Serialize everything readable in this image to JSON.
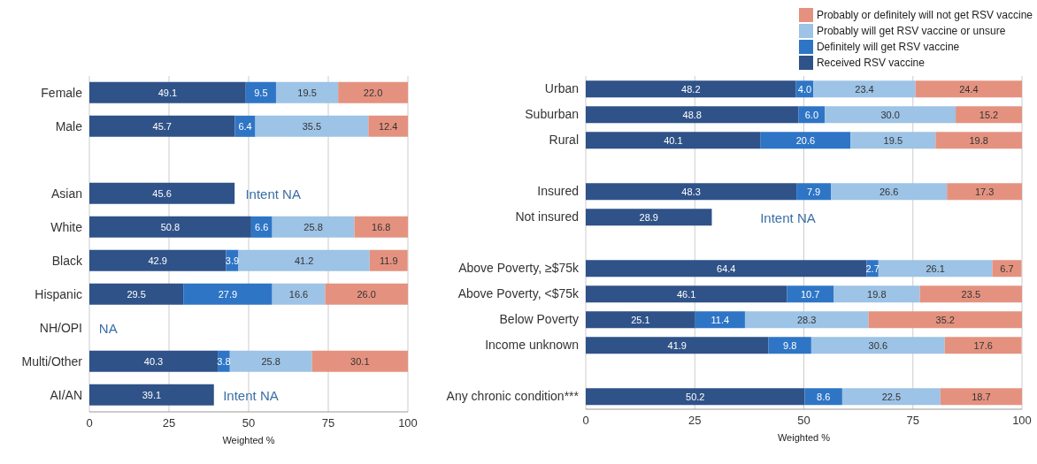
{
  "chart_data": [
    {
      "type": "bar",
      "orientation": "horizontal",
      "stacked": true,
      "xlabel": "Weighted %",
      "categories": [
        "Female",
        "Male",
        null,
        "Asian",
        "White",
        "Black",
        "Hispanic",
        "NH/OPI",
        "Multi/Other",
        "AI/AN"
      ],
      "series": [
        {
          "color": "#2f5288",
          "values": [
            49.1,
            45.7,
            null,
            45.6,
            50.8,
            42.9,
            29.5,
            null,
            40.3,
            39.1
          ],
          "value_labels": [
            "49.1",
            "45.7",
            null,
            "45.6",
            "50.8",
            "42.9",
            "29.5",
            null,
            "40.3",
            "39.1"
          ]
        },
        {
          "color": "#2e75c6",
          "values": [
            9.5,
            6.4,
            null,
            null,
            6.6,
            3.9,
            27.9,
            null,
            3.8,
            null
          ],
          "value_labels": [
            "9.5",
            "6.4",
            null,
            null,
            "6.6",
            "3.9",
            "27.9",
            null,
            "3.8",
            null
          ]
        },
        {
          "color": "#9dc3e6",
          "values": [
            19.5,
            35.5,
            null,
            null,
            25.8,
            41.2,
            16.6,
            null,
            25.8,
            null
          ],
          "value_labels": [
            "19.5",
            "35.5",
            null,
            null,
            "25.8",
            "41.2",
            "16.6",
            null,
            "25.8",
            null
          ]
        },
        {
          "color": "#e4927f",
          "values": [
            22.0,
            12.4,
            null,
            null,
            16.8,
            11.9,
            26.0,
            null,
            30.1,
            null
          ],
          "value_labels": [
            "22.0",
            "12.4",
            null,
            null,
            "16.8",
            "11.9",
            "26.0",
            null,
            "30.1",
            null
          ]
        }
      ],
      "xlim": [
        0,
        100
      ],
      "xticks": [
        0,
        25,
        50,
        75,
        100
      ],
      "grid": "x",
      "legend": false,
      "annotations": [
        "Intent NA",
        "NA",
        "Intent NA"
      ]
    },
    {
      "type": "bar",
      "orientation": "horizontal",
      "stacked": true,
      "xlabel": "Weighted %",
      "categories": [
        "Urban",
        "Suburban",
        "Rural",
        null,
        "Insured",
        "Not insured",
        null,
        "Above Poverty, ≥$75k",
        "Above Poverty, <$75k",
        "Below Poverty",
        "Income unknown",
        null,
        "Any chronic condition***"
      ],
      "series": [
        {
          "name": "Received RSV vaccine",
          "color": "#2f5288",
          "values": [
            48.2,
            48.8,
            40.1,
            null,
            48.3,
            28.9,
            null,
            64.4,
            46.1,
            25.1,
            41.9,
            null,
            50.2
          ],
          "value_labels": [
            "48.2",
            "48.8",
            "40.1",
            null,
            "48.3",
            "28.9",
            null,
            "64.4",
            "46.1",
            "25.1",
            "41.9",
            null,
            "50.2"
          ]
        },
        {
          "name": "Definitely will get RSV vaccine",
          "color": "#2e75c6",
          "values": [
            4.0,
            6.0,
            20.6,
            null,
            7.9,
            null,
            null,
            2.7,
            10.7,
            11.4,
            9.8,
            null,
            8.6
          ],
          "value_labels": [
            "4.0",
            "6.0",
            "20.6",
            null,
            "7.9",
            null,
            null,
            "2.7",
            "10.7",
            "11.4",
            "9.8",
            null,
            "8.6"
          ]
        },
        {
          "name": "Probably will get RSV vaccine or unsure",
          "color": "#9dc3e6",
          "values": [
            23.4,
            30.0,
            19.5,
            null,
            26.6,
            null,
            null,
            26.1,
            19.8,
            28.3,
            30.6,
            null,
            22.5
          ],
          "value_labels": [
            "23.4",
            "30.0",
            "19.5",
            null,
            "26.6",
            null,
            null,
            "26.1",
            "19.8",
            "28.3",
            "30.6",
            null,
            "22.5"
          ]
        },
        {
          "name": "Probably or definitely will not get RSV vaccine",
          "color": "#e4927f",
          "values": [
            24.4,
            15.2,
            19.8,
            null,
            17.3,
            null,
            null,
            6.7,
            23.5,
            35.2,
            17.6,
            null,
            18.7
          ],
          "value_labels": [
            "24.4",
            "15.2",
            "19.8",
            null,
            "17.3",
            null,
            null,
            "6.7",
            "23.5",
            "35.2",
            "17.6",
            null,
            "18.7"
          ]
        }
      ],
      "xlim": [
        0,
        100
      ],
      "xticks": [
        0,
        25,
        50,
        75,
        100
      ],
      "grid": "x",
      "legend": "top right",
      "annotations": [
        "Intent NA"
      ]
    }
  ]
}
